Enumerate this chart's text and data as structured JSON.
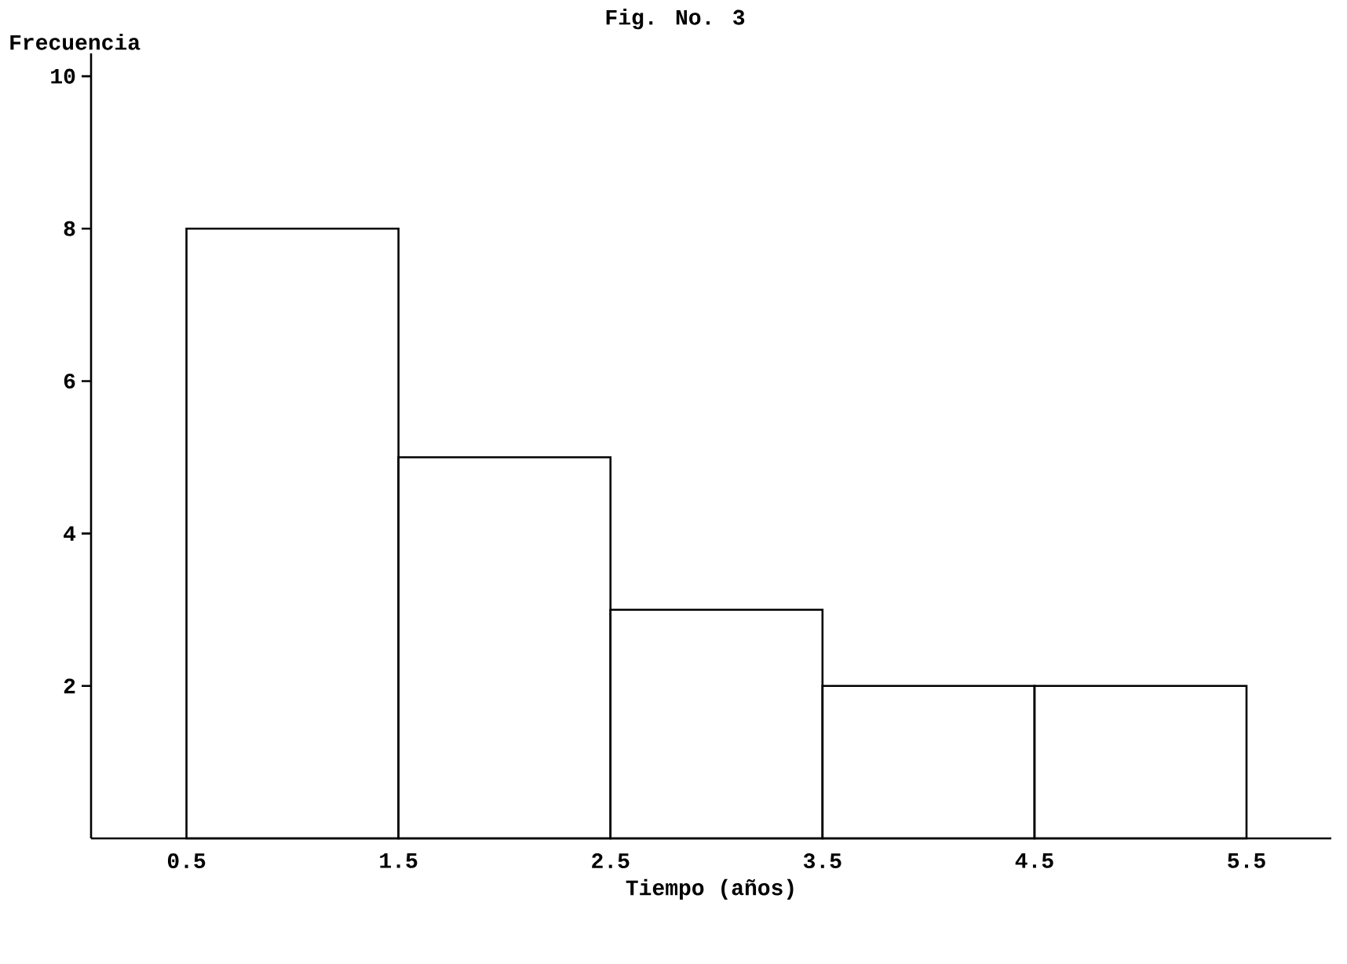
{
  "chart_data": {
    "type": "histogram",
    "title": "Fig. No. 3",
    "xlabel": "Tiempo (años)",
    "ylabel": "Frecuencia",
    "bins": [
      0.5,
      1.5,
      2.5,
      3.5,
      4.5,
      5.5
    ],
    "values": [
      8,
      5,
      3,
      2,
      2
    ],
    "color": "#000000",
    "xlim": [
      0.05,
      5.9
    ],
    "ylim": [
      0,
      10.3
    ],
    "xticks": [
      0.5,
      1.5,
      2.5,
      3.5,
      4.5,
      5.5
    ],
    "yticks": [
      2,
      4,
      6,
      8,
      10
    ],
    "grid": false
  }
}
